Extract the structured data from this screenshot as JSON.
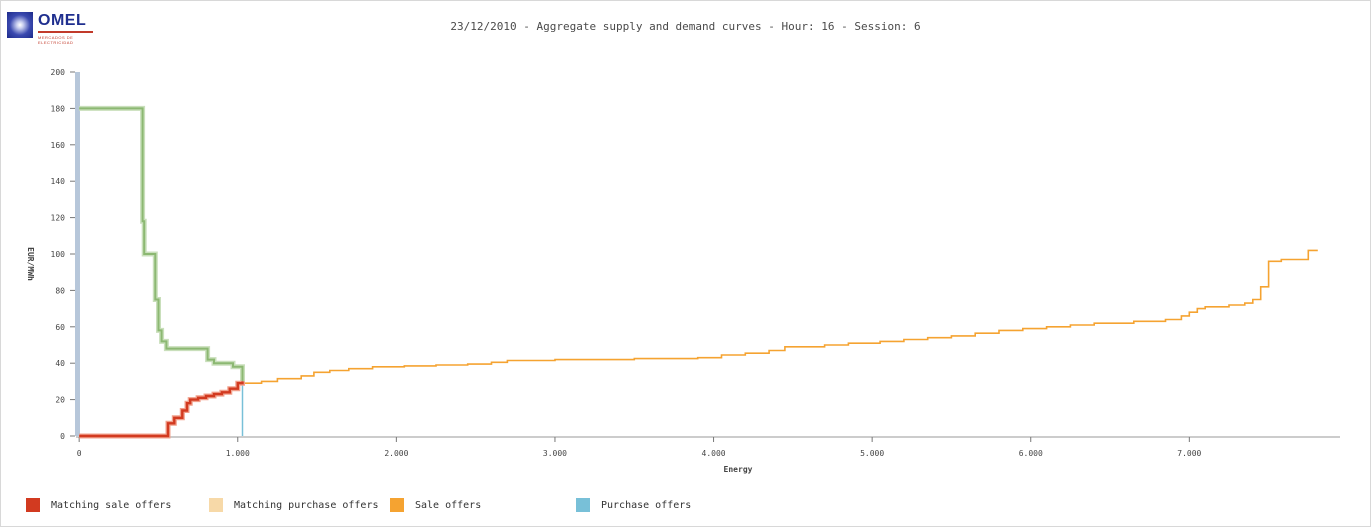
{
  "header": {
    "logo_text": "OMEL",
    "logo_subtext": "MERCADOS DE ELECTRICIDAD",
    "title": "23/12/2010 - Aggregate supply and demand curves - Hour: 16 - Session: 6"
  },
  "legend": [
    {
      "label": "Matching sale offers",
      "color": "#d23a20"
    },
    {
      "label": "Matching purchase offers",
      "color": "#f7d9a8"
    },
    {
      "label": "Sale offers",
      "color": "#f5a331"
    },
    {
      "label": "Purchase offers",
      "color": "#78c0d8"
    }
  ],
  "chart_data": {
    "type": "line",
    "title": "23/12/2010 - Aggregate supply and demand curves - Hour: 16 - Session: 6",
    "xlabel": "Energy",
    "ylabel": "EUR/MWh",
    "xlim": [
      -20,
      7950
    ],
    "ylim": [
      0,
      200
    ],
    "x_ticks": [
      0,
      1000,
      2000,
      3000,
      4000,
      5000,
      6000,
      7000
    ],
    "x_tick_labels": [
      "0",
      "1.000",
      "2.000",
      "3.000",
      "4.000",
      "5.000",
      "6.000",
      "7.000"
    ],
    "y_ticks": [
      0,
      20,
      40,
      60,
      80,
      100,
      120,
      140,
      160,
      180,
      200
    ],
    "y_tick_labels": [
      "0",
      "20",
      "40",
      "60",
      "80",
      "100",
      "120",
      "140",
      "160",
      "180",
      "200"
    ],
    "grid": false,
    "legend_position": "bottom",
    "series": [
      {
        "name": "Sale offers",
        "color": "#f5a331",
        "step": true,
        "points": [
          [
            1000,
            29
          ],
          [
            1150,
            30
          ],
          [
            1250,
            31.5
          ],
          [
            1400,
            33
          ],
          [
            1480,
            35
          ],
          [
            1580,
            36
          ],
          [
            1700,
            37
          ],
          [
            1850,
            38
          ],
          [
            2050,
            38.5
          ],
          [
            2250,
            39
          ],
          [
            2450,
            39.5
          ],
          [
            2600,
            40.5
          ],
          [
            2700,
            41.5
          ],
          [
            3000,
            42
          ],
          [
            3500,
            42.5
          ],
          [
            3900,
            43
          ],
          [
            4050,
            44.5
          ],
          [
            4200,
            45.5
          ],
          [
            4350,
            47
          ],
          [
            4450,
            49
          ],
          [
            4700,
            50
          ],
          [
            4850,
            51
          ],
          [
            5050,
            52
          ],
          [
            5200,
            53
          ],
          [
            5350,
            54
          ],
          [
            5500,
            55
          ],
          [
            5650,
            56.5
          ],
          [
            5800,
            58
          ],
          [
            5950,
            59
          ],
          [
            6100,
            60
          ],
          [
            6250,
            61
          ],
          [
            6400,
            62
          ],
          [
            6650,
            63
          ],
          [
            6850,
            64
          ],
          [
            6950,
            66
          ],
          [
            7000,
            68
          ],
          [
            7050,
            70
          ],
          [
            7100,
            71
          ],
          [
            7250,
            72
          ],
          [
            7350,
            73
          ],
          [
            7400,
            75
          ],
          [
            7450,
            82
          ],
          [
            7500,
            96
          ],
          [
            7580,
            97
          ],
          [
            7750,
            102
          ],
          [
            7810,
            102
          ]
        ]
      },
      {
        "name": "Matching sale offers",
        "color": "#d23a20",
        "step": true,
        "points": [
          [
            0,
            0
          ],
          [
            540,
            0
          ],
          [
            560,
            7
          ],
          [
            600,
            10
          ],
          [
            650,
            14
          ],
          [
            680,
            18
          ],
          [
            700,
            20
          ],
          [
            750,
            21
          ],
          [
            800,
            22
          ],
          [
            850,
            23
          ],
          [
            900,
            24
          ],
          [
            950,
            26
          ],
          [
            1000,
            29
          ],
          [
            1030,
            30
          ]
        ]
      },
      {
        "name": "Purchase offers",
        "color": "#78c0d8",
        "step": true,
        "points": [
          [
            1030,
            30
          ],
          [
            1030,
            0
          ]
        ]
      },
      {
        "name": "Demand curve",
        "color": "#8cb872",
        "step": true,
        "points": [
          [
            0,
            180
          ],
          [
            380,
            180
          ],
          [
            400,
            118
          ],
          [
            410,
            100
          ],
          [
            480,
            75
          ],
          [
            500,
            58
          ],
          [
            520,
            52
          ],
          [
            550,
            48
          ],
          [
            810,
            42
          ],
          [
            850,
            40
          ],
          [
            970,
            38
          ],
          [
            1030,
            37
          ],
          [
            1030,
            30
          ]
        ]
      }
    ]
  }
}
